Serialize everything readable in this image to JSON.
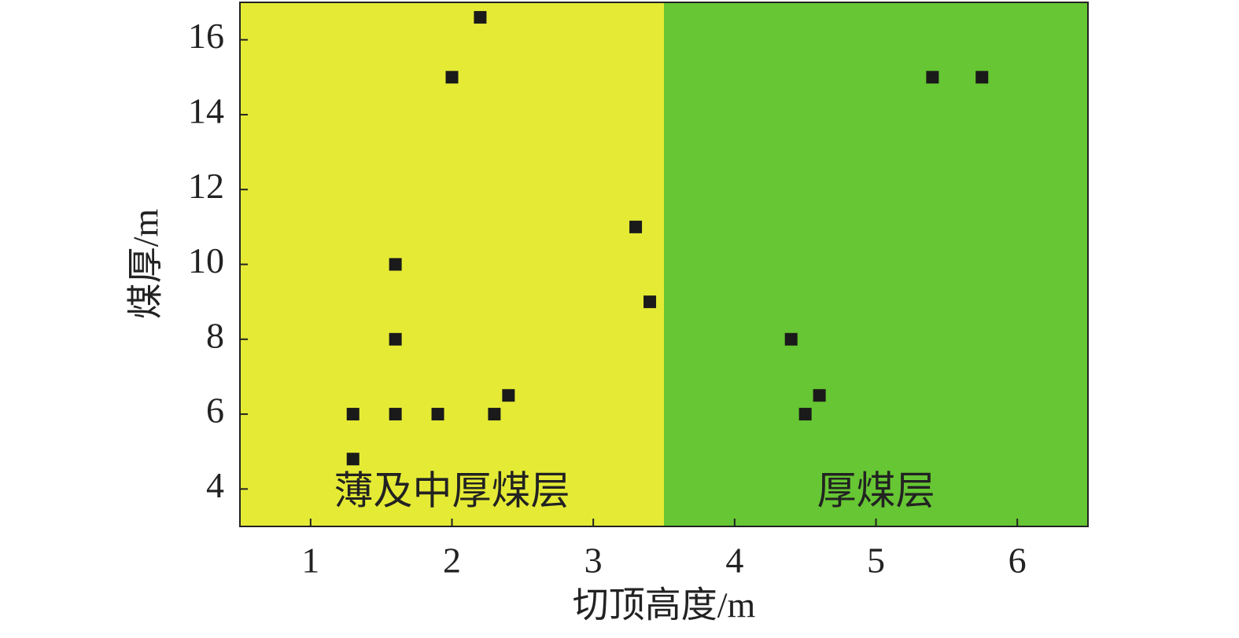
{
  "chart_data": {
    "type": "scatter",
    "x_label": "切顶高度/m",
    "y_label": "煤厚/m",
    "xlim": [
      0.5,
      6.5
    ],
    "ylim": [
      3,
      17
    ],
    "xticks": [
      1,
      2,
      3,
      4,
      5,
      6
    ],
    "yticks": [
      4,
      6,
      8,
      10,
      12,
      14,
      16
    ],
    "regions": [
      {
        "label": "薄及中厚煤层",
        "xlim": [
          0.5,
          3.5
        ],
        "color": "#e5eb35"
      },
      {
        "label": "厚煤层",
        "xlim": [
          3.5,
          6.5
        ],
        "color": "#66c633"
      }
    ],
    "color": "#1a1a1a",
    "x": [
      1.3,
      1.3,
      1.6,
      1.6,
      1.6,
      1.9,
      2.0,
      2.2,
      2.3,
      2.4,
      3.3,
      3.4,
      4.4,
      4.5,
      4.6,
      5.4,
      5.75
    ],
    "y": [
      4.8,
      6,
      6,
      8,
      10,
      6,
      15,
      16.6,
      6,
      6.5,
      11,
      9,
      8,
      6,
      6.5,
      15,
      15
    ]
  }
}
